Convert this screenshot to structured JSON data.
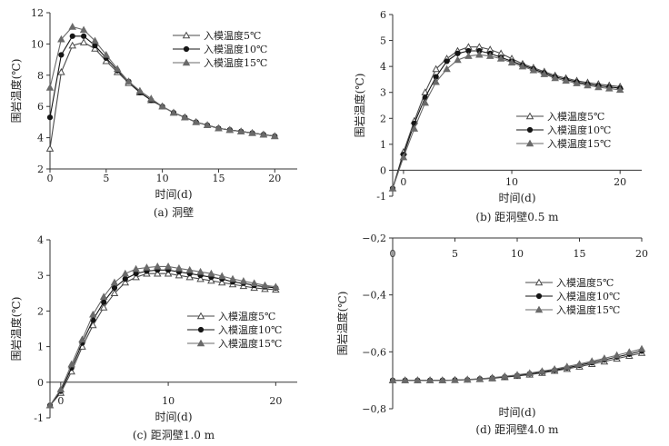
{
  "chart_data": [
    {
      "type": "line",
      "caption": "(a) 洞壁",
      "xlabel": "时间(d)",
      "ylabel": "围岩温度(℃)",
      "xlim": [
        0,
        22
      ],
      "ylim": [
        2,
        12
      ],
      "xticks": [
        0,
        5,
        10,
        15,
        20
      ],
      "yticks": [
        2,
        4,
        6,
        8,
        10,
        12
      ],
      "ytick_labels": [
        "2",
        "4",
        "6",
        "8",
        "10",
        "12"
      ],
      "legend_position": "top-center",
      "series": [
        {
          "name": "入模温度5℃",
          "marker": "tri-open",
          "x": [
            0,
            1,
            2,
            3,
            4,
            5,
            6,
            7,
            8,
            9,
            10,
            11,
            12,
            13,
            14,
            15,
            16,
            17,
            18,
            19,
            20
          ],
          "y": [
            3.3,
            8.2,
            9.9,
            10.1,
            9.7,
            8.9,
            8.2,
            7.5,
            6.9,
            6.4,
            6.0,
            5.6,
            5.3,
            5.0,
            4.8,
            4.6,
            4.5,
            4.4,
            4.3,
            4.2,
            4.1
          ]
        },
        {
          "name": "入模温度10℃",
          "marker": "circle",
          "x": [
            0,
            1,
            2,
            3,
            4,
            5,
            6,
            7,
            8,
            9,
            10,
            11,
            12,
            13,
            14,
            15,
            16,
            17,
            18,
            19,
            20
          ],
          "y": [
            5.3,
            9.3,
            10.5,
            10.5,
            9.9,
            9.1,
            8.3,
            7.6,
            6.9,
            6.4,
            6.0,
            5.6,
            5.3,
            5.0,
            4.8,
            4.6,
            4.5,
            4.4,
            4.3,
            4.2,
            4.1
          ]
        },
        {
          "name": "入模温度15℃",
          "marker": "tri-filled",
          "x": [
            0,
            1,
            2,
            3,
            4,
            5,
            6,
            7,
            8,
            9,
            10,
            11,
            12,
            13,
            14,
            15,
            16,
            17,
            18,
            19,
            20
          ],
          "y": [
            7.2,
            10.3,
            11.1,
            10.9,
            10.2,
            9.3,
            8.4,
            7.6,
            7.0,
            6.5,
            6.0,
            5.6,
            5.3,
            5.0,
            4.8,
            4.6,
            4.5,
            4.4,
            4.3,
            4.2,
            4.1
          ]
        }
      ]
    },
    {
      "type": "line",
      "caption": "(b) 距洞壁0.5 m",
      "xlabel": "时间(d)",
      "ylabel": "围岩温度(℃)",
      "xlim": [
        -1,
        22
      ],
      "ylim": [
        -1,
        6
      ],
      "xticks": [
        0,
        10,
        20
      ],
      "yticks": [
        -1,
        0,
        1,
        2,
        3,
        4,
        5,
        6
      ],
      "ytick_labels": [
        "-1",
        "0",
        "1",
        "2",
        "3",
        "4",
        "5",
        "6"
      ],
      "legend_position": "center-right",
      "series": [
        {
          "name": "入模温度5℃",
          "marker": "tri-open",
          "x": [
            -1,
            0,
            1,
            2,
            3,
            4,
            5,
            6,
            7,
            8,
            9,
            10,
            11,
            12,
            13,
            14,
            15,
            16,
            17,
            18,
            19,
            20
          ],
          "y": [
            -0.7,
            0.7,
            1.9,
            3.0,
            3.9,
            4.3,
            4.6,
            4.75,
            4.75,
            4.65,
            4.5,
            4.3,
            4.1,
            3.95,
            3.8,
            3.65,
            3.55,
            3.45,
            3.38,
            3.32,
            3.27,
            3.22
          ]
        },
        {
          "name": "入模温度10℃",
          "marker": "circle",
          "x": [
            -1,
            0,
            1,
            2,
            3,
            4,
            5,
            6,
            7,
            8,
            9,
            10,
            11,
            12,
            13,
            14,
            15,
            16,
            17,
            18,
            19,
            20
          ],
          "y": [
            -0.7,
            0.6,
            1.8,
            2.8,
            3.6,
            4.2,
            4.5,
            4.6,
            4.6,
            4.5,
            4.35,
            4.2,
            4.05,
            3.9,
            3.75,
            3.6,
            3.5,
            3.4,
            3.32,
            3.26,
            3.21,
            3.16
          ]
        },
        {
          "name": "入模温度15℃",
          "marker": "tri-filled",
          "x": [
            -1,
            0,
            1,
            2,
            3,
            4,
            5,
            6,
            7,
            8,
            9,
            10,
            11,
            12,
            13,
            14,
            15,
            16,
            17,
            18,
            19,
            20
          ],
          "y": [
            -0.7,
            0.5,
            1.6,
            2.6,
            3.4,
            3.9,
            4.25,
            4.4,
            4.45,
            4.4,
            4.3,
            4.15,
            4.0,
            3.85,
            3.7,
            3.55,
            3.45,
            3.35,
            3.27,
            3.2,
            3.15,
            3.1
          ]
        }
      ]
    },
    {
      "type": "line",
      "caption": "(c) 距洞壁1.0 m",
      "xlabel": "时间(d)",
      "ylabel": "围岩温度(℃)",
      "xlim": [
        -1,
        22
      ],
      "ylim": [
        -1,
        4
      ],
      "xticks": [
        0,
        10,
        20
      ],
      "yticks": [
        -1,
        0,
        1,
        2,
        3,
        4
      ],
      "ytick_labels": [
        "-1",
        "0",
        "1",
        "2",
        "3",
        "4"
      ],
      "legend_position": "center-right",
      "series": [
        {
          "name": "入模温度5℃",
          "marker": "tri-open",
          "x": [
            -1,
            0,
            1,
            2,
            3,
            4,
            5,
            6,
            7,
            8,
            9,
            10,
            11,
            12,
            13,
            14,
            15,
            16,
            17,
            18,
            19,
            20
          ],
          "y": [
            -0.65,
            -0.3,
            0.3,
            1.0,
            1.6,
            2.1,
            2.5,
            2.8,
            2.95,
            3.05,
            3.05,
            3.05,
            3.0,
            2.95,
            2.9,
            2.85,
            2.8,
            2.75,
            2.7,
            2.65,
            2.62,
            2.6
          ]
        },
        {
          "name": "入模温度10℃",
          "marker": "circle",
          "x": [
            -1,
            0,
            1,
            2,
            3,
            4,
            5,
            6,
            7,
            8,
            9,
            10,
            11,
            12,
            13,
            14,
            15,
            16,
            17,
            18,
            19,
            20
          ],
          "y": [
            -0.65,
            -0.25,
            0.4,
            1.1,
            1.75,
            2.25,
            2.65,
            2.9,
            3.05,
            3.12,
            3.15,
            3.15,
            3.1,
            3.05,
            3.0,
            2.95,
            2.9,
            2.82,
            2.78,
            2.72,
            2.68,
            2.65
          ]
        },
        {
          "name": "入模温度15℃",
          "marker": "tri-filled",
          "x": [
            -1,
            0,
            1,
            2,
            3,
            4,
            5,
            6,
            7,
            8,
            9,
            10,
            11,
            12,
            13,
            14,
            15,
            16,
            17,
            18,
            19,
            20
          ],
          "y": [
            -0.65,
            -0.2,
            0.5,
            1.2,
            1.9,
            2.4,
            2.8,
            3.05,
            3.18,
            3.22,
            3.25,
            3.25,
            3.2,
            3.15,
            3.1,
            3.05,
            2.98,
            2.9,
            2.84,
            2.78,
            2.72,
            2.68
          ]
        }
      ]
    },
    {
      "type": "line",
      "caption": "(d) 距洞壁4.0 m",
      "xlabel": "时间(d)",
      "ylabel": "围岩温度(℃)",
      "xlim": [
        0,
        20
      ],
      "ylim": [
        -0.8,
        -0.2
      ],
      "xticks": [
        0,
        5,
        10,
        15,
        20
      ],
      "yticks": [
        -0.8,
        -0.6,
        -0.4,
        -0.2
      ],
      "ytick_labels": [
        "−0,8",
        "−0,6",
        "−0,4",
        "−0,2"
      ],
      "xaxis_position": "top",
      "legend_position": "center-right",
      "series": [
        {
          "name": "入模温度5℃",
          "marker": "tri-open",
          "x": [
            0,
            1,
            2,
            3,
            4,
            5,
            6,
            7,
            8,
            9,
            10,
            11,
            12,
            13,
            14,
            15,
            16,
            17,
            18,
            19,
            20
          ],
          "y": [
            -0.7,
            -0.7,
            -0.7,
            -0.7,
            -0.7,
            -0.699,
            -0.698,
            -0.696,
            -0.693,
            -0.689,
            -0.685,
            -0.68,
            -0.674,
            -0.667,
            -0.66,
            -0.652,
            -0.643,
            -0.634,
            -0.624,
            -0.614,
            -0.604
          ]
        },
        {
          "name": "入模温度10℃",
          "marker": "circle",
          "x": [
            0,
            1,
            2,
            3,
            4,
            5,
            6,
            7,
            8,
            9,
            10,
            11,
            12,
            13,
            14,
            15,
            16,
            17,
            18,
            19,
            20
          ],
          "y": [
            -0.7,
            -0.7,
            -0.7,
            -0.7,
            -0.7,
            -0.699,
            -0.698,
            -0.695,
            -0.692,
            -0.688,
            -0.683,
            -0.677,
            -0.671,
            -0.664,
            -0.656,
            -0.647,
            -0.638,
            -0.628,
            -0.618,
            -0.608,
            -0.597
          ]
        },
        {
          "name": "入模温度15℃",
          "marker": "tri-filled",
          "x": [
            0,
            1,
            2,
            3,
            4,
            5,
            6,
            7,
            8,
            9,
            10,
            11,
            12,
            13,
            14,
            15,
            16,
            17,
            18,
            19,
            20
          ],
          "y": [
            -0.7,
            -0.7,
            -0.7,
            -0.7,
            -0.7,
            -0.699,
            -0.697,
            -0.695,
            -0.691,
            -0.686,
            -0.681,
            -0.675,
            -0.668,
            -0.661,
            -0.652,
            -0.643,
            -0.633,
            -0.623,
            -0.612,
            -0.601,
            -0.59
          ]
        }
      ]
    }
  ]
}
